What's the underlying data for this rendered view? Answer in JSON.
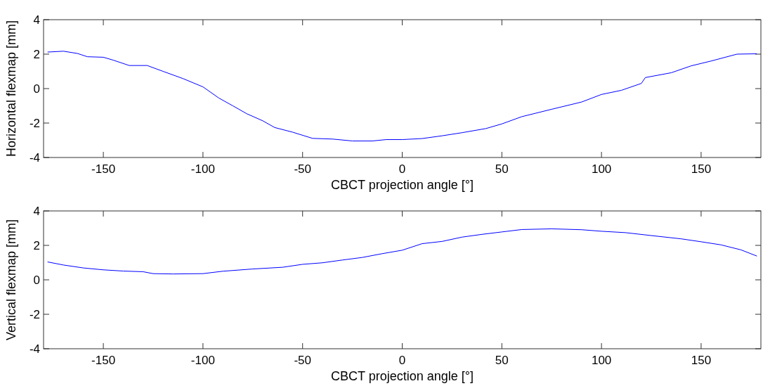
{
  "chart_data": [
    {
      "type": "line",
      "xlabel": "CBCT projection angle [°]",
      "ylabel": "Horizontal flexmap [mm]",
      "xlim": [
        -180,
        180
      ],
      "xticks": [
        -150,
        -100,
        -50,
        0,
        50,
        100,
        150
      ],
      "ylim": [
        -4,
        4
      ],
      "yticks": [
        -4,
        -2,
        0,
        2,
        4
      ],
      "series": [
        {
          "color": "#0000ff",
          "x": [
            -178,
            -170,
            -163,
            -158,
            -150,
            -145,
            -137,
            -128,
            -120,
            -110,
            -100,
            -92,
            -85,
            -78,
            -70,
            -64,
            -55,
            -45,
            -35,
            -25,
            -15,
            -8,
            0,
            10,
            20,
            30,
            42,
            50,
            60,
            75,
            90,
            100,
            110,
            120,
            122,
            135,
            145,
            155,
            168,
            178
          ],
          "values": [
            2.12,
            2.17,
            2.04,
            1.85,
            1.82,
            1.65,
            1.34,
            1.34,
            1.0,
            0.58,
            0.1,
            -0.55,
            -1.0,
            -1.46,
            -1.87,
            -2.26,
            -2.53,
            -2.89,
            -2.93,
            -3.04,
            -3.04,
            -2.96,
            -2.96,
            -2.9,
            -2.74,
            -2.56,
            -2.32,
            -2.05,
            -1.63,
            -1.2,
            -0.78,
            -0.34,
            -0.1,
            0.3,
            0.64,
            0.92,
            1.32,
            1.6,
            2.0,
            2.02
          ]
        }
      ]
    },
    {
      "type": "line",
      "xlabel": "CBCT projection angle [°]",
      "ylabel": "Vertical flexmap [mm]",
      "xlim": [
        -180,
        180
      ],
      "xticks": [
        -150,
        -100,
        -50,
        0,
        50,
        100,
        150
      ],
      "ylim": [
        -4,
        4
      ],
      "yticks": [
        -4,
        -2,
        0,
        2,
        4
      ],
      "series": [
        {
          "color": "#0000ff",
          "x": [
            -178,
            -170,
            -160,
            -150,
            -140,
            -130,
            -125,
            -115,
            -100,
            -90,
            -75,
            -60,
            -50,
            -40,
            -30,
            -20,
            -10,
            0,
            10,
            20,
            30,
            40,
            50,
            60,
            75,
            90,
            100,
            112,
            125,
            140,
            150,
            160,
            170,
            178
          ],
          "values": [
            1.04,
            0.86,
            0.69,
            0.58,
            0.51,
            0.47,
            0.36,
            0.34,
            0.36,
            0.5,
            0.63,
            0.73,
            0.9,
            0.99,
            1.15,
            1.3,
            1.52,
            1.72,
            2.1,
            2.23,
            2.48,
            2.64,
            2.78,
            2.92,
            2.96,
            2.91,
            2.82,
            2.74,
            2.57,
            2.38,
            2.21,
            2.03,
            1.74,
            1.38
          ]
        }
      ]
    }
  ]
}
